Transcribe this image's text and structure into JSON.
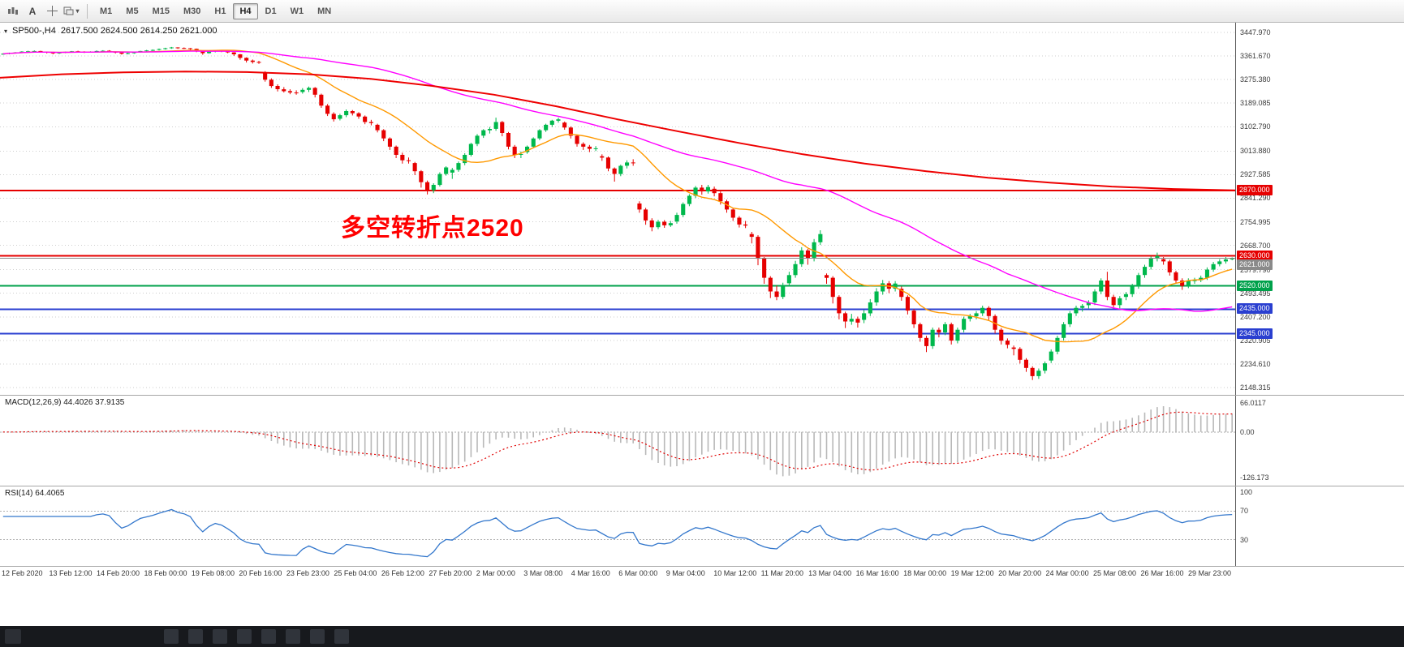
{
  "toolbar": {
    "icons": [
      {
        "name": "chart-window-icon"
      },
      {
        "name": "cursor-a-button",
        "glyph": "A"
      },
      {
        "name": "crosshair-icon"
      },
      {
        "name": "objects-dropdown-icon",
        "caret": "▾"
      }
    ],
    "timeframes": [
      "M1",
      "M5",
      "M15",
      "M30",
      "H1",
      "H4",
      "D1",
      "W1",
      "MN"
    ],
    "active_timeframe": "H4"
  },
  "chart_header": {
    "marker": "▾",
    "title": "SP500-,H4",
    "ohlc": "2617.500 2624.500 2614.250 2621.000"
  },
  "annotation": {
    "text": "多空转折点2520",
    "color": "#ff0000"
  },
  "macd_panel": {
    "label": "MACD(12,26,9) 44.4026 37.9135",
    "axis_labels": [
      "66.0117",
      "0.00",
      "-126.173"
    ]
  },
  "rsi_panel": {
    "label": "RSI(14) 64.4065",
    "axis_labels": [
      "100",
      "70",
      "30"
    ]
  },
  "taskbar": {
    "left_icon_count": 1,
    "app_icon_count": 8
  },
  "chart_data": {
    "type": "candlestick",
    "symbol": "SP500-",
    "timeframe": "H4",
    "title": "SP500-,H4 2617.500 2624.500 2614.250 2621.000",
    "colors": {
      "up": "#00b84c",
      "down": "#e60000",
      "grid": "#cdcdcd",
      "bg": "#ffffff"
    },
    "price_axis": {
      "min": 2148.315,
      "max": 3447.97,
      "ticks": [
        [
          "3447.970",
          3447.97
        ],
        [
          "3361.670",
          3361.67
        ],
        [
          "3275.380",
          3275.38
        ],
        [
          "3189.085",
          3189.085
        ],
        [
          "3102.790",
          3102.79
        ],
        [
          "3013.880",
          3013.88
        ],
        [
          "2927.585",
          2927.585
        ],
        [
          "2841.290",
          2841.29
        ],
        [
          "2754.995",
          2754.995
        ],
        [
          "2668.700",
          2668.7
        ],
        [
          "2579.790",
          2579.79
        ],
        [
          "2493.495",
          2493.495
        ],
        [
          "2407.200",
          2407.2
        ],
        [
          "2320.905",
          2320.905
        ],
        [
          "2234.610",
          2234.61
        ],
        [
          "2148.315",
          2148.315
        ]
      ]
    },
    "hlines": [
      {
        "value": 2870,
        "label": "2870.000",
        "color": "#e60000",
        "width": 2
      },
      {
        "value": 2630,
        "label": "2630.000",
        "color": "#e60000",
        "width": 2
      },
      {
        "value": 2520,
        "label": "2520.000",
        "color": "#00a14b",
        "width": 2
      },
      {
        "value": 2435,
        "label": "2435.000",
        "color": "#2a3fd0",
        "width": 2
      },
      {
        "value": 2345,
        "label": "2345.000",
        "color": "#2a3fd0",
        "width": 2
      }
    ],
    "current_price": {
      "value": 2621.0,
      "label": "2621.000",
      "color": "#8a8a8a"
    },
    "overlays": {
      "fast_ma": {
        "type": "sma",
        "period": 16,
        "color": "#ff9900"
      },
      "mid_ma": {
        "type": "sma",
        "period": 60,
        "color": "#ff00ff"
      },
      "slow_ma": {
        "type": "values",
        "color": "#ee0000",
        "values": [
          3282,
          3295,
          3302,
          3305,
          3303,
          3295,
          3278,
          3252,
          3220,
          3178,
          3130,
          3085,
          3042,
          3002,
          2968,
          2940,
          2916,
          2898,
          2884,
          2875,
          2870
        ]
      }
    },
    "macd": {
      "fast": 12,
      "slow": 26,
      "signal": 9,
      "current_macd": 44.4026,
      "current_signal": 37.9135,
      "hist_color": "#b8b8b8",
      "signal_color": "#e00000"
    },
    "rsi": {
      "period": 14,
      "current": 64.4065,
      "color": "#3377cc",
      "levels": [
        70,
        30
      ]
    },
    "time_labels": [
      "12 Feb 2020",
      "13 Feb 12:00",
      "14 Feb 20:00",
      "18 Feb 00:00",
      "19 Feb 08:00",
      "20 Feb 16:00",
      "23 Feb 23:00",
      "25 Feb 04:00",
      "26 Feb 12:00",
      "27 Feb 20:00",
      "2 Mar 00:00",
      "3 Mar 08:00",
      "4 Mar 16:00",
      "6 Mar 00:00",
      "9 Mar 04:00",
      "10 Mar 12:00",
      "11 Mar 20:00",
      "13 Mar 04:00",
      "16 Mar 16:00",
      "18 Mar 00:00",
      "19 Mar 12:00",
      "20 Mar 20:00",
      "24 Mar 00:00",
      "25 Mar 08:00",
      "26 Mar 16:00",
      "29 Mar 23:00"
    ],
    "candles": [
      [
        3368,
        3372,
        3366,
        3370
      ],
      [
        3370,
        3374,
        3368,
        3373
      ],
      [
        3373,
        3376,
        3371,
        3375
      ],
      [
        3375,
        3379,
        3373,
        3378
      ],
      [
        3378,
        3381,
        3376,
        3379
      ],
      [
        3379,
        3382,
        3377,
        3380
      ],
      [
        3380,
        3381,
        3374,
        3377
      ],
      [
        3377,
        3378,
        3371,
        3374
      ],
      [
        3374,
        3376,
        3368,
        3371
      ],
      [
        3371,
        3375,
        3369,
        3374
      ],
      [
        3374,
        3378,
        3372,
        3377
      ],
      [
        3377,
        3380,
        3375,
        3379
      ],
      [
        3379,
        3381,
        3375,
        3378
      ],
      [
        3378,
        3379,
        3373,
        3376
      ],
      [
        3376,
        3379,
        3374,
        3378
      ],
      [
        3378,
        3382,
        3376,
        3380
      ],
      [
        3380,
        3383,
        3378,
        3381
      ],
      [
        3381,
        3383,
        3378,
        3380
      ],
      [
        3377,
        3378,
        3371,
        3375
      ],
      [
        3375,
        3376,
        3367,
        3370
      ],
      [
        3370,
        3374,
        3368,
        3372
      ],
      [
        3372,
        3377,
        3370,
        3376
      ],
      [
        3376,
        3381,
        3374,
        3380
      ],
      [
        3380,
        3384,
        3378,
        3382
      ],
      [
        3382,
        3386,
        3380,
        3384
      ],
      [
        3384,
        3389,
        3382,
        3387
      ],
      [
        3387,
        3392,
        3385,
        3390
      ],
      [
        3390,
        3395,
        3388,
        3393
      ],
      [
        3393,
        3394,
        3388,
        3391
      ],
      [
        3391,
        3393,
        3387,
        3390
      ],
      [
        3390,
        3391,
        3384,
        3388
      ],
      [
        3388,
        3389,
        3376,
        3380
      ],
      [
        3380,
        3382,
        3366,
        3372
      ],
      [
        3372,
        3380,
        3370,
        3378
      ],
      [
        3378,
        3384,
        3375,
        3382
      ],
      [
        3382,
        3384,
        3376,
        3380
      ],
      [
        3380,
        3381,
        3372,
        3375
      ],
      [
        3375,
        3376,
        3362,
        3368
      ],
      [
        3368,
        3369,
        3348,
        3355
      ],
      [
        3355,
        3357,
        3338,
        3345
      ],
      [
        3345,
        3349,
        3334,
        3340
      ],
      [
        3340,
        3344,
        3333,
        3338
      ],
      [
        3302,
        3306,
        3268,
        3275
      ],
      [
        3275,
        3280,
        3245,
        3252
      ],
      [
        3252,
        3258,
        3232,
        3240
      ],
      [
        3240,
        3248,
        3228,
        3233
      ],
      [
        3233,
        3240,
        3222,
        3228
      ],
      [
        3228,
        3236,
        3220,
        3226
      ],
      [
        3230,
        3244,
        3224,
        3238
      ],
      [
        3238,
        3250,
        3230,
        3245
      ],
      [
        3245,
        3248,
        3210,
        3220
      ],
      [
        3220,
        3224,
        3172,
        3180
      ],
      [
        3180,
        3186,
        3142,
        3150
      ],
      [
        3150,
        3156,
        3122,
        3130
      ],
      [
        3132,
        3150,
        3126,
        3145
      ],
      [
        3145,
        3166,
        3138,
        3160
      ],
      [
        3160,
        3164,
        3144,
        3152
      ],
      [
        3152,
        3156,
        3132,
        3140
      ],
      [
        3140,
        3144,
        3112,
        3120
      ],
      [
        3120,
        3128,
        3108,
        3116
      ],
      [
        3110,
        3114,
        3082,
        3090
      ],
      [
        3090,
        3094,
        3050,
        3060
      ],
      [
        3060,
        3064,
        3018,
        3030
      ],
      [
        3030,
        3034,
        2988,
        3000
      ],
      [
        3000,
        3008,
        2968,
        2980
      ],
      [
        2980,
        2990,
        2968,
        2978
      ],
      [
        2970,
        2974,
        2926,
        2940
      ],
      [
        2940,
        2944,
        2880,
        2900
      ],
      [
        2900,
        2906,
        2855,
        2870
      ],
      [
        2870,
        2896,
        2860,
        2890
      ],
      [
        2890,
        2936,
        2884,
        2930
      ],
      [
        2930,
        2958,
        2924,
        2954
      ],
      [
        2935,
        2952,
        2912,
        2945
      ],
      [
        2945,
        2976,
        2938,
        2970
      ],
      [
        2970,
        3006,
        2962,
        3000
      ],
      [
        3000,
        3044,
        2994,
        3040
      ],
      [
        3040,
        3076,
        3032,
        3070
      ],
      [
        3070,
        3094,
        3062,
        3090
      ],
      [
        3090,
        3102,
        3078,
        3095
      ],
      [
        3095,
        3136,
        3088,
        3120
      ],
      [
        3120,
        3124,
        3068,
        3080
      ],
      [
        3080,
        3084,
        3020,
        3030
      ],
      [
        3030,
        3036,
        2988,
        3000
      ],
      [
        3000,
        3012,
        2988,
        3003
      ],
      [
        3010,
        3034,
        3004,
        3030
      ],
      [
        3030,
        3064,
        3024,
        3060
      ],
      [
        3060,
        3094,
        3054,
        3090
      ],
      [
        3090,
        3114,
        3084,
        3110
      ],
      [
        3110,
        3128,
        3102,
        3125
      ],
      [
        3125,
        3136,
        3118,
        3130
      ],
      [
        3118,
        3122,
        3092,
        3100
      ],
      [
        3100,
        3104,
        3060,
        3070
      ],
      [
        3070,
        3074,
        3030,
        3040
      ],
      [
        3040,
        3046,
        3018,
        3030
      ],
      [
        3030,
        3036,
        3010,
        3022
      ],
      [
        3022,
        3032,
        3014,
        3024
      ],
      [
        2995,
        3002,
        2978,
        2990
      ],
      [
        2990,
        2994,
        2940,
        2950
      ],
      [
        2950,
        2954,
        2902,
        2930
      ],
      [
        2930,
        2964,
        2922,
        2960
      ],
      [
        2960,
        2980,
        2950,
        2972
      ],
      [
        2972,
        2984,
        2960,
        2970
      ],
      [
        2822,
        2830,
        2788,
        2800
      ],
      [
        2800,
        2806,
        2744,
        2760
      ],
      [
        2760,
        2768,
        2720,
        2735
      ],
      [
        2735,
        2762,
        2728,
        2755
      ],
      [
        2755,
        2761,
        2733,
        2742
      ],
      [
        2742,
        2758,
        2736,
        2750
      ],
      [
        2756,
        2788,
        2748,
        2780
      ],
      [
        2780,
        2826,
        2772,
        2820
      ],
      [
        2820,
        2856,
        2812,
        2850
      ],
      [
        2850,
        2886,
        2842,
        2880
      ],
      [
        2880,
        2890,
        2854,
        2866
      ],
      [
        2866,
        2890,
        2858,
        2882
      ],
      [
        2876,
        2884,
        2848,
        2860
      ],
      [
        2860,
        2866,
        2818,
        2830
      ],
      [
        2830,
        2836,
        2788,
        2800
      ],
      [
        2800,
        2806,
        2758,
        2770
      ],
      [
        2770,
        2776,
        2734,
        2745
      ],
      [
        2745,
        2758,
        2732,
        2741
      ],
      [
        2710,
        2718,
        2676,
        2700
      ],
      [
        2700,
        2706,
        2596,
        2620
      ],
      [
        2620,
        2626,
        2528,
        2550
      ],
      [
        2550,
        2556,
        2476,
        2500
      ],
      [
        2500,
        2522,
        2468,
        2480
      ],
      [
        2480,
        2532,
        2472,
        2520
      ],
      [
        2530,
        2572,
        2518,
        2560
      ],
      [
        2560,
        2612,
        2550,
        2600
      ],
      [
        2600,
        2662,
        2590,
        2650
      ],
      [
        2650,
        2656,
        2598,
        2620
      ],
      [
        2620,
        2692,
        2610,
        2680
      ],
      [
        2680,
        2724,
        2670,
        2710
      ],
      [
        2560,
        2566,
        2528,
        2550
      ],
      [
        2550,
        2556,
        2456,
        2480
      ],
      [
        2480,
        2486,
        2398,
        2420
      ],
      [
        2420,
        2426,
        2366,
        2390
      ],
      [
        2390,
        2418,
        2378,
        2400
      ],
      [
        2400,
        2408,
        2368,
        2386
      ],
      [
        2396,
        2432,
        2384,
        2420
      ],
      [
        2420,
        2472,
        2410,
        2460
      ],
      [
        2460,
        2512,
        2448,
        2500
      ],
      [
        2500,
        2542,
        2488,
        2530
      ],
      [
        2530,
        2538,
        2494,
        2510
      ],
      [
        2510,
        2538,
        2500,
        2529
      ],
      [
        2510,
        2518,
        2466,
        2480
      ],
      [
        2480,
        2486,
        2416,
        2430
      ],
      [
        2430,
        2436,
        2366,
        2380
      ],
      [
        2380,
        2386,
        2316,
        2330
      ],
      [
        2330,
        2338,
        2278,
        2300
      ],
      [
        2300,
        2368,
        2290,
        2360
      ],
      [
        2360,
        2368,
        2332,
        2350
      ],
      [
        2350,
        2388,
        2340,
        2380
      ],
      [
        2380,
        2386,
        2306,
        2320
      ],
      [
        2320,
        2368,
        2310,
        2360
      ],
      [
        2360,
        2408,
        2350,
        2400
      ],
      [
        2400,
        2418,
        2390,
        2409
      ],
      [
        2409,
        2428,
        2398,
        2420
      ],
      [
        2420,
        2448,
        2410,
        2440
      ],
      [
        2440,
        2446,
        2396,
        2410
      ],
      [
        2410,
        2416,
        2346,
        2360
      ],
      [
        2360,
        2366,
        2306,
        2320
      ],
      [
        2320,
        2328,
        2292,
        2305
      ],
      [
        2295,
        2302,
        2266,
        2290
      ],
      [
        2290,
        2296,
        2236,
        2250
      ],
      [
        2250,
        2256,
        2206,
        2220
      ],
      [
        2220,
        2226,
        2176,
        2190
      ],
      [
        2190,
        2218,
        2180,
        2210
      ],
      [
        2210,
        2244,
        2200,
        2237
      ],
      [
        2247,
        2288,
        2238,
        2280
      ],
      [
        2280,
        2338,
        2270,
        2330
      ],
      [
        2330,
        2388,
        2320,
        2380
      ],
      [
        2380,
        2428,
        2370,
        2420
      ],
      [
        2420,
        2448,
        2410,
        2440
      ],
      [
        2440,
        2454,
        2426,
        2447
      ],
      [
        2450,
        2468,
        2438,
        2460
      ],
      [
        2460,
        2508,
        2450,
        2500
      ],
      [
        2500,
        2548,
        2490,
        2540
      ],
      [
        2540,
        2572,
        2468,
        2480
      ],
      [
        2480,
        2488,
        2442,
        2450
      ],
      [
        2450,
        2483,
        2438,
        2475
      ],
      [
        2480,
        2498,
        2468,
        2490
      ],
      [
        2490,
        2528,
        2480,
        2520
      ],
      [
        2520,
        2568,
        2510,
        2560
      ],
      [
        2560,
        2598,
        2550,
        2590
      ],
      [
        2590,
        2628,
        2580,
        2620
      ],
      [
        2620,
        2642,
        2610,
        2630
      ],
      [
        2618,
        2626,
        2598,
        2610
      ],
      [
        2610,
        2616,
        2558,
        2570
      ],
      [
        2570,
        2576,
        2530,
        2540
      ],
      [
        2540,
        2548,
        2506,
        2520
      ],
      [
        2520,
        2548,
        2512,
        2540
      ],
      [
        2540,
        2550,
        2528,
        2541
      ],
      [
        2541,
        2558,
        2534,
        2550
      ],
      [
        2550,
        2588,
        2542,
        2580
      ],
      [
        2580,
        2608,
        2572,
        2600
      ],
      [
        2600,
        2618,
        2592,
        2610
      ],
      [
        2610,
        2626,
        2602,
        2617
      ],
      [
        2617.5,
        2624.5,
        2614.25,
        2621
      ]
    ]
  }
}
